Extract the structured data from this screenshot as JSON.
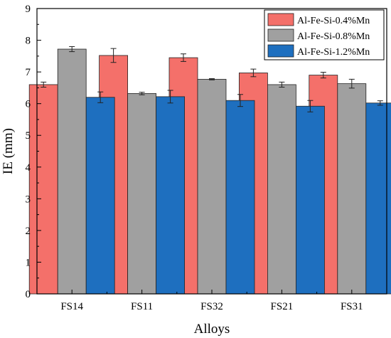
{
  "chart_data": {
    "type": "bar",
    "xlabel": "Alloys",
    "ylabel": "IE (mm)",
    "ylim": [
      0,
      9
    ],
    "yticks": [
      "0",
      "1",
      "2",
      "3",
      "4",
      "5",
      "6",
      "7",
      "8",
      "9"
    ],
    "categories": [
      "FS14",
      "FS11",
      "FS32",
      "FS21",
      "FS31"
    ],
    "legend_position": "top-right",
    "grid": false,
    "series": [
      {
        "name": "Al-Fe-Si-0.4%Mn",
        "color": "#F4706A",
        "values": [
          6.6,
          7.52,
          7.45,
          6.97,
          6.9
        ],
        "errors": [
          0.08,
          0.22,
          0.12,
          0.12,
          0.09
        ]
      },
      {
        "name": "Al-Fe-Si-0.8%Mn",
        "color": "#A0A0A0",
        "values": [
          7.72,
          6.32,
          6.77,
          6.6,
          6.63
        ],
        "errors": [
          0.08,
          0.04,
          0.02,
          0.08,
          0.14
        ]
      },
      {
        "name": "Al-Fe-Si-1.2%Mn",
        "color": "#1E6FBF",
        "values": [
          6.2,
          6.22,
          6.1,
          5.92,
          6.02
        ],
        "errors": [
          0.17,
          0.2,
          0.19,
          0.18,
          0.07
        ]
      }
    ]
  }
}
